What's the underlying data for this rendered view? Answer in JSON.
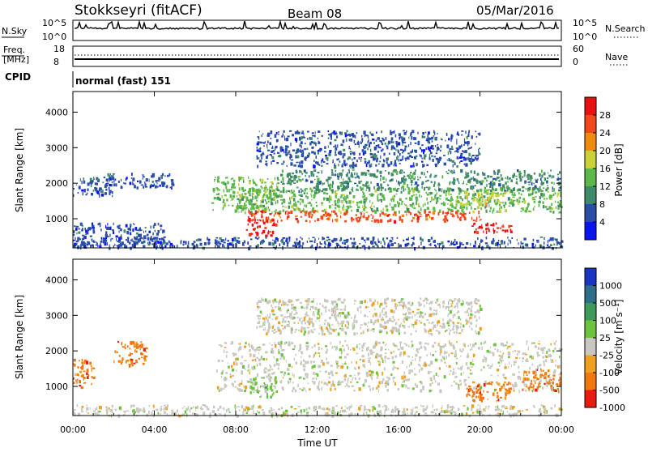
{
  "header": {
    "radar_title": "Stokkseyri (fitACF)",
    "beam_title": "Beam 08",
    "date_title": "05/Mar/2016"
  },
  "strips": {
    "nsky_label": "N.Sky",
    "nsky_ticks": [
      "10^5",
      "10^0"
    ],
    "nsearch_label": "N.Search",
    "nsearch_ticks": [
      "10^5",
      "10^0"
    ],
    "freq_label": "Freq.",
    "freq_unit": "[MHz]",
    "freq_ticks": [
      "18",
      "8"
    ],
    "nave_label": "Nave",
    "nave_ticks": [
      "60",
      "0"
    ],
    "cpid_label": "CPID",
    "cpid_value": "normal (fast) 151"
  },
  "axes": {
    "ylabel": "Slant Range [km]",
    "xlabel": "Time UT",
    "y_ticks": [
      "1000",
      "2000",
      "3000",
      "4000"
    ],
    "y_tick_values": [
      1000,
      2000,
      3000,
      4000
    ],
    "ylim": [
      180,
      4580
    ],
    "x_ticks": [
      "00:00",
      "04:00",
      "08:00",
      "12:00",
      "16:00",
      "20:00",
      "00:00"
    ],
    "x_tick_hours": [
      0,
      4,
      8,
      12,
      16,
      20,
      24
    ],
    "xlim_hours": [
      0,
      24
    ]
  },
  "power_scale": {
    "label": "Power [dB]",
    "ticks": [
      "4",
      "8",
      "12",
      "16",
      "20",
      "24",
      "28"
    ],
    "colors": [
      "#0a14f0",
      "#2a4ea8",
      "#3f8a68",
      "#5cb84a",
      "#c9d23a",
      "#f08a10",
      "#f04818",
      "#e81010"
    ]
  },
  "velocity_scale": {
    "label": "Velocity [m s⁻¹]",
    "ticks": [
      "1000",
      "500",
      "100",
      "25",
      "-25",
      "-100",
      "-500",
      "-1000"
    ],
    "colors": [
      "#1a36c0",
      "#2f6e8a",
      "#3e9a58",
      "#6cc43c",
      "#c8c8c0",
      "#f0a020",
      "#f07810",
      "#e81c10"
    ]
  },
  "chart_data": {
    "type": "heatmap",
    "panels": [
      {
        "name": "power",
        "regions": [
          {
            "t": [
              0.0,
              2.0
            ],
            "r": [
              1650,
              2200
            ],
            "color_index": 1
          },
          {
            "t": [
              1.5,
              5.0
            ],
            "r": [
              1900,
              2300
            ],
            "color_index": 1
          },
          {
            "t": [
              0.0,
              4.5
            ],
            "r": [
              250,
              900
            ],
            "color_index": 1
          },
          {
            "t": [
              6.8,
              10.0
            ],
            "r": [
              1200,
              2200
            ],
            "color_index": 3
          },
          {
            "t": [
              8.0,
              24.0
            ],
            "r": [
              1200,
              1900
            ],
            "color_index": 3
          },
          {
            "t": [
              10.0,
              24.0
            ],
            "r": [
              1800,
              2400
            ],
            "color_index": 2
          },
          {
            "t": [
              9.0,
              20.0
            ],
            "r": [
              2500,
              3500
            ],
            "color_index": 1
          },
          {
            "t": [
              8.5,
              20.0
            ],
            "r": [
              950,
              1250
            ],
            "color_index": 6
          },
          {
            "t": [
              8.5,
              10.0
            ],
            "r": [
              550,
              1000
            ],
            "color_index": 7
          },
          {
            "t": [
              19.5,
              21.5
            ],
            "r": [
              650,
              900
            ],
            "color_index": 7
          },
          {
            "t": [
              19.0,
              21.0
            ],
            "r": [
              1400,
              1800
            ],
            "color_index": 4
          },
          {
            "t": [
              0.0,
              24.0
            ],
            "r": [
              200,
              500
            ],
            "color_index": 1
          }
        ]
      },
      {
        "name": "velocity",
        "regions": [
          {
            "t": [
              0.0,
              1.0
            ],
            "r": [
              1000,
              1800
            ],
            "color_index": 6
          },
          {
            "t": [
              2.0,
              3.6
            ],
            "r": [
              1600,
              2300
            ],
            "color_index": 6
          },
          {
            "t": [
              7.0,
              24.0
            ],
            "r": [
              900,
              2300
            ],
            "color_index": 4
          },
          {
            "t": [
              9.0,
              20.0
            ],
            "r": [
              2500,
              3500
            ],
            "color_index": 4
          },
          {
            "t": [
              8.6,
              10.0
            ],
            "r": [
              700,
              1300
            ],
            "color_index": 3
          },
          {
            "t": [
              19.3,
              21.5
            ],
            "r": [
              600,
              1150
            ],
            "color_index": 6
          },
          {
            "t": [
              22.0,
              24.0
            ],
            "r": [
              900,
              1500
            ],
            "color_index": 6
          },
          {
            "t": [
              0.0,
              24.0
            ],
            "r": [
              200,
              500
            ],
            "color_index": 4
          }
        ]
      }
    ]
  }
}
